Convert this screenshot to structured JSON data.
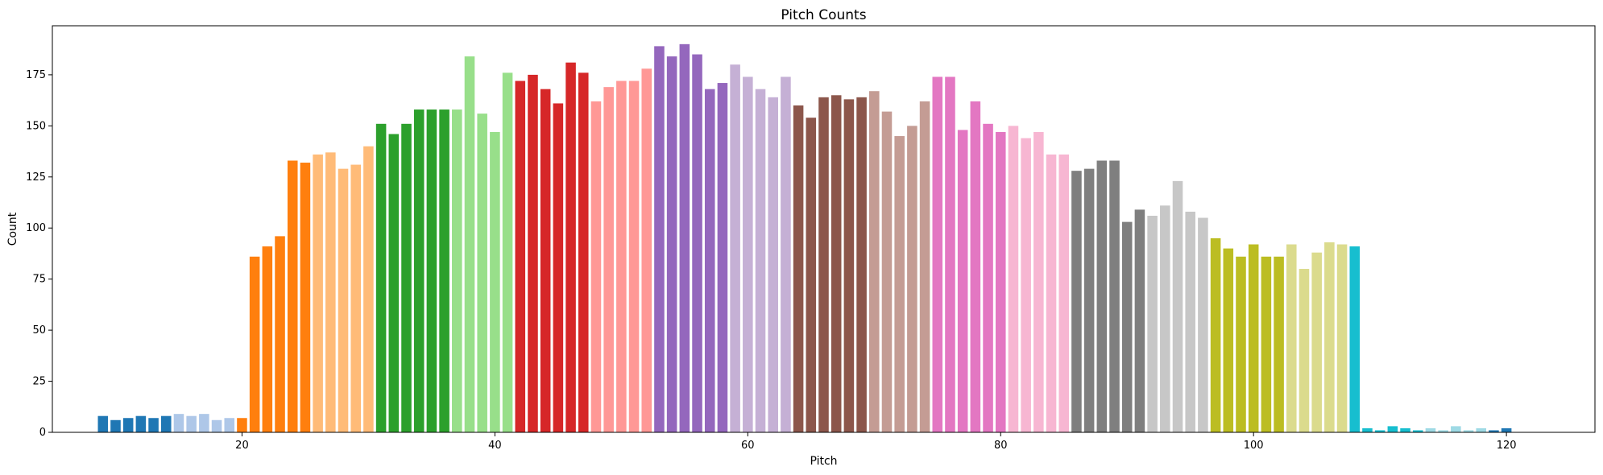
{
  "chart_data": {
    "type": "bar",
    "title": "Pitch Counts",
    "xlabel": "Pitch",
    "ylabel": "Count",
    "xlim": [
      5,
      127
    ],
    "ylim": [
      0,
      199
    ],
    "xticks": [
      20,
      40,
      60,
      80,
      100,
      120
    ],
    "yticks": [
      0,
      25,
      50,
      75,
      100,
      125,
      150,
      175
    ],
    "grid": false,
    "legend": "none",
    "palette": [
      "#1f77b4",
      "#aec7e8",
      "#ff7f0e",
      "#ffbb78",
      "#2ca02c",
      "#98df8a",
      "#d62728",
      "#ff9896",
      "#9467bd",
      "#c5b0d5",
      "#8c564b",
      "#c49c94",
      "#e377c2",
      "#f7b6d2",
      "#7f7f7f",
      "#c7c7c7",
      "#bcbd22",
      "#dbdb8d",
      "#17becf",
      "#9edae5"
    ],
    "x": [
      9,
      10,
      11,
      12,
      13,
      14,
      15,
      16,
      17,
      18,
      19,
      20,
      21,
      22,
      23,
      24,
      25,
      26,
      27,
      28,
      29,
      30,
      31,
      32,
      33,
      34,
      35,
      36,
      37,
      38,
      39,
      40,
      41,
      42,
      43,
      44,
      45,
      46,
      47,
      48,
      49,
      50,
      51,
      52,
      53,
      54,
      55,
      56,
      57,
      58,
      59,
      60,
      61,
      62,
      63,
      64,
      65,
      66,
      67,
      68,
      69,
      70,
      71,
      72,
      73,
      74,
      75,
      76,
      77,
      78,
      79,
      80,
      81,
      82,
      83,
      84,
      85,
      86,
      87,
      88,
      89,
      90,
      91,
      92,
      93,
      94,
      95,
      96,
      97,
      98,
      99,
      100,
      101,
      102,
      103,
      104,
      105,
      106,
      107,
      108,
      109,
      110,
      111,
      112,
      113,
      114,
      115,
      116,
      117,
      118,
      119,
      120
    ],
    "values": [
      8,
      6,
      7,
      8,
      7,
      8,
      9,
      8,
      9,
      6,
      7,
      7,
      86,
      91,
      96,
      133,
      132,
      136,
      137,
      129,
      131,
      140,
      151,
      146,
      151,
      158,
      158,
      158,
      158,
      184,
      156,
      147,
      176,
      172,
      175,
      168,
      161,
      181,
      176,
      162,
      169,
      172,
      172,
      178,
      189,
      184,
      190,
      185,
      168,
      171,
      180,
      174,
      168,
      164,
      174,
      160,
      154,
      164,
      165,
      163,
      164,
      167,
      157,
      145,
      150,
      162,
      174,
      174,
      148,
      162,
      151,
      147,
      150,
      144,
      147,
      136,
      136,
      128,
      129,
      133,
      133,
      103,
      109,
      106,
      111,
      123,
      108,
      105,
      95,
      90,
      86,
      92,
      86,
      86,
      92,
      80,
      88,
      93,
      92,
      91,
      2,
      1,
      3,
      2,
      1,
      2,
      1,
      3,
      1,
      2,
      1,
      2
    ]
  }
}
